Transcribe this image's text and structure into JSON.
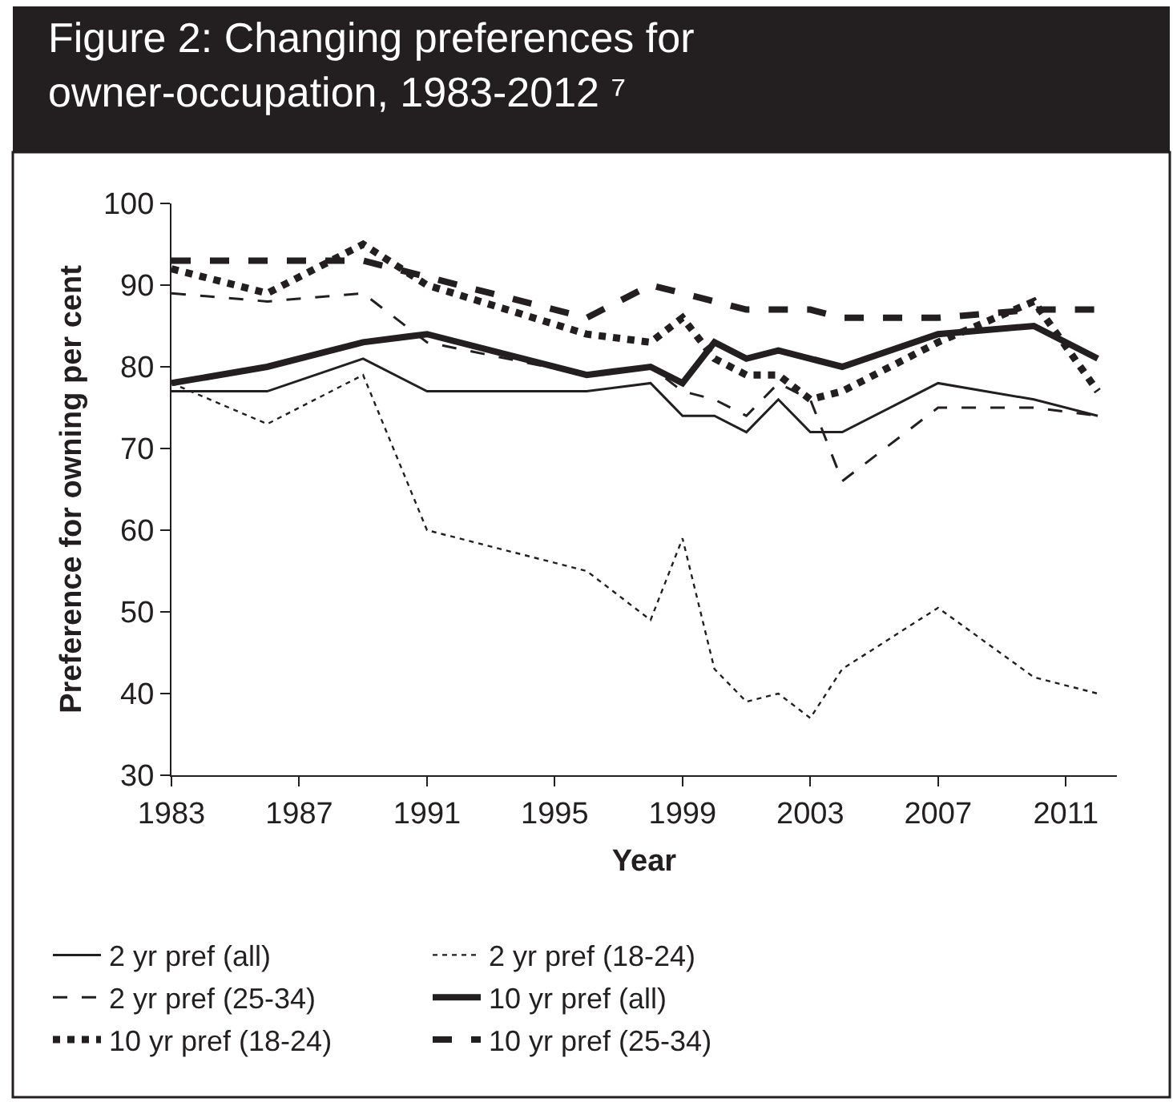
{
  "chart_data": {
    "type": "line",
    "title": "Figure 2: Changing preferences for owner-occupation, 1983-2012 ⁷",
    "xlabel": "Year",
    "ylabel": "Preference for owning per cent",
    "xlim": [
      1983,
      2012.6
    ],
    "xticks": [
      1983,
      1987,
      1991,
      1995,
      1999,
      2003,
      2007,
      2011
    ],
    "ylim": [
      30,
      100
    ],
    "yticks": [
      30,
      40,
      50,
      60,
      70,
      80,
      90,
      100
    ],
    "legend": "bottom",
    "marker": "none",
    "x": [
      1983,
      1986,
      1989,
      1991,
      1996,
      1998,
      1999,
      2000,
      2001,
      2002,
      2003,
      2004,
      2007,
      2010,
      2012
    ],
    "series": [
      {
        "name": "2 yr pref (all)",
        "color": "#231f20",
        "line_style": "solid",
        "values": [
          77,
          77,
          81,
          77,
          77,
          78,
          74,
          74,
          72,
          76,
          72,
          72,
          78,
          76,
          74
        ]
      },
      {
        "name": "2 yr pref (18-24)",
        "color": "#231f20",
        "line_style": "dotted",
        "values": [
          78,
          73,
          79,
          60,
          55,
          49,
          59,
          43,
          39,
          40,
          37,
          43,
          50.5,
          42,
          40
        ]
      },
      {
        "name": "2 yr pref (25-34)",
        "color": "#231f20",
        "line_style": "dashed",
        "values": [
          89,
          88,
          89,
          83,
          79,
          80,
          77,
          76,
          74,
          78,
          76,
          66,
          75,
          75,
          74
        ]
      },
      {
        "name": "10 yr pref (all)",
        "color": "#231f20",
        "line_style": "solid",
        "values": [
          78,
          80,
          83,
          84,
          79,
          80,
          78,
          83,
          81,
          82,
          81,
          80,
          84,
          85,
          81
        ]
      },
      {
        "name": "10 yr pref (18-24)",
        "color": "#231f20",
        "line_style": "dotted",
        "values": [
          92,
          89,
          95,
          90,
          84,
          83,
          86,
          81,
          79,
          79,
          76,
          77,
          83,
          88,
          77
        ]
      },
      {
        "name": "10 yr pref (25-34)",
        "color": "#231f20",
        "line_style": "dashed",
        "values": [
          93,
          93,
          93,
          91,
          86,
          90,
          89,
          88,
          87,
          87,
          87,
          86,
          86,
          87,
          87
        ]
      }
    ]
  }
}
